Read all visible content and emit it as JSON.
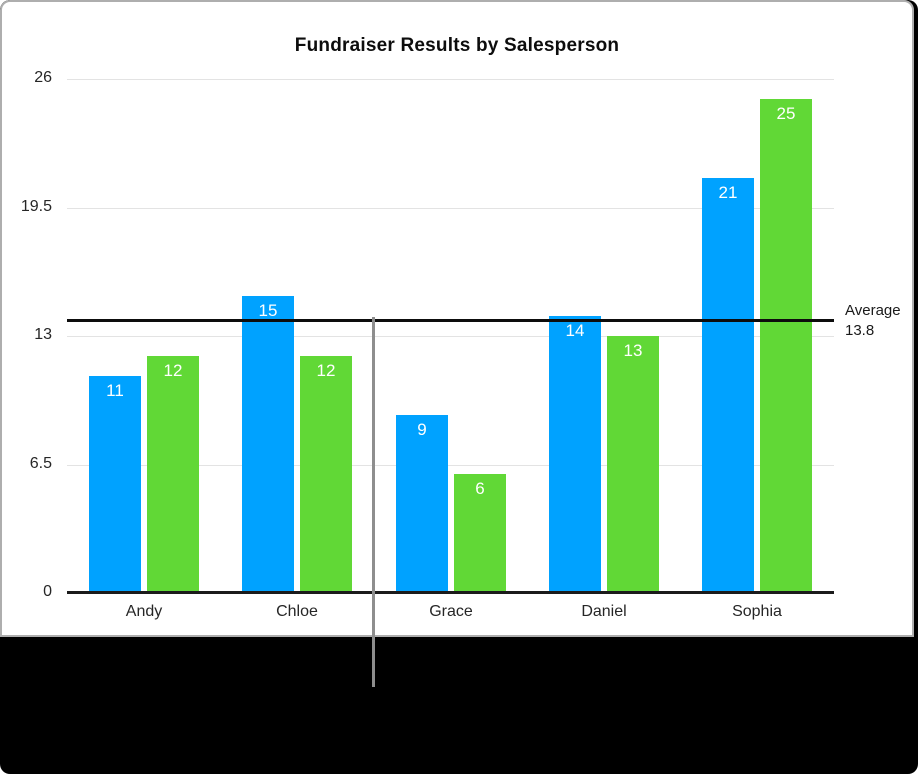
{
  "chart_data": {
    "type": "bar",
    "title": "Fundraiser Results by Salesperson",
    "categories": [
      "Andy",
      "Chloe",
      "Grace",
      "Daniel",
      "Sophia"
    ],
    "series": [
      {
        "name": "blue-series",
        "color": "#00a2ff",
        "values": [
          11,
          15,
          9,
          14,
          21
        ]
      },
      {
        "name": "green-series",
        "color": "#61d836",
        "values": [
          12,
          12,
          6,
          13,
          25
        ]
      }
    ],
    "y_ticks": [
      0,
      6.5,
      13,
      19.5,
      26
    ],
    "y_tick_labels": [
      "0",
      "6.5",
      "13",
      "19.5",
      "26"
    ],
    "ylim": [
      0,
      26
    ],
    "grid": true,
    "legend": "none",
    "bar_value_labels_shown": true,
    "average_line": {
      "value": 13.8,
      "label_line1": "Average",
      "label_line2": "13.8",
      "line_color": "#0d0d0d"
    },
    "colors": {
      "gridline": "#e3e3e3",
      "axis": "#1b1b1b",
      "value_label_text": "#ffffff",
      "divider_line": "#8e8e8e",
      "lower_panel_background": "#000000"
    }
  }
}
